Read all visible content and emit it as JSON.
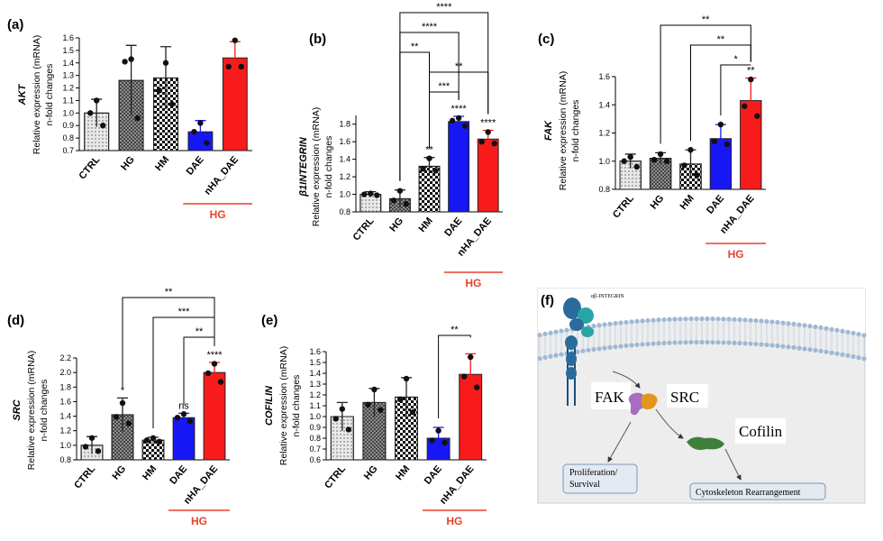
{
  "chart_data": [
    {
      "type": "bar",
      "panel": "(a)",
      "gene": "AKT",
      "ylabel": [
        "Relative expression (mRNA)",
        "n-fold changes"
      ],
      "categories": [
        "CTRL",
        "HG",
        "HM",
        "DAE",
        "nHA_DAE"
      ],
      "values": [
        1.0,
        1.26,
        1.28,
        0.85,
        1.44
      ],
      "errors": [
        0.11,
        0.28,
        0.25,
        0.09,
        0.13
      ],
      "points": [
        [
          1.1,
          1.0,
          0.9
        ],
        [
          1.43,
          1.41,
          0.96
        ],
        [
          1.4,
          1.18,
          1.07
        ],
        [
          0.92,
          0.85,
          0.76
        ],
        [
          1.58,
          1.37,
          1.37
        ]
      ],
      "colors": [
        "#e8e8e8",
        "#a0a0a0",
        "#ffffff",
        "#1717f5",
        "#f81b1b"
      ],
      "fills": [
        "dots",
        "crosshatch",
        "checker",
        "solid",
        "solid"
      ],
      "ylim": [
        0.7,
        1.6
      ],
      "yticks": [
        0.7,
        0.8,
        0.9,
        {
          "value": 1,
          "label": "1.0"
        },
        1.1,
        1.2,
        1.3,
        1.4,
        1.5,
        1.6
      ],
      "group": {
        "label": "HG",
        "from": "DAE",
        "to": "nHA_DAE",
        "color": "#e8412c"
      },
      "marks": [],
      "comparisons": []
    },
    {
      "type": "bar",
      "panel": "(b)",
      "gene": "β1INTEGRIN",
      "ylabel": [
        "Relative expression (mRNA)",
        "n-fold changes"
      ],
      "categories": [
        "CTRL",
        "HG",
        "HM",
        "DAE",
        "nHA_DAE"
      ],
      "values": [
        1.0,
        0.95,
        1.32,
        1.83,
        1.63
      ],
      "errors": [
        0.03,
        0.1,
        0.1,
        0.06,
        0.1
      ],
      "points": [
        [
          1.01,
          1.0,
          0.99
        ],
        [
          1.04,
          0.93,
          0.89
        ],
        [
          1.41,
          1.29,
          1.27
        ],
        [
          1.87,
          1.84,
          1.78
        ],
        [
          1.71,
          1.6,
          1.58
        ]
      ],
      "colors": [
        "#e8e8e8",
        "#a0a0a0",
        "#ffffff",
        "#1717f5",
        "#f81b1b"
      ],
      "fills": [
        "dots",
        "crosshatch",
        "checker",
        "solid",
        "solid"
      ],
      "ylim": [
        0.8,
        1.9
      ],
      "yticks": [
        0.8,
        {
          "value": 1,
          "label": "1.0"
        },
        1.2,
        1.4,
        1.6,
        1.8
      ],
      "group": {
        "label": "HG",
        "from": "DAE",
        "to": "nHA_DAE",
        "color": "#e8412c"
      },
      "marks": [
        {
          "category": "HM",
          "label": "**"
        },
        {
          "category": "DAE",
          "label": "****"
        },
        {
          "category": "nHA_DAE",
          "label": "****"
        }
      ],
      "comparisons": [
        {
          "from": "HM",
          "to": "DAE",
          "label": "***"
        },
        {
          "from": "HM",
          "to": "nHA_DAE",
          "label": "**"
        },
        {
          "from": "HG",
          "to": "HM",
          "label": "**"
        },
        {
          "from": "HG",
          "to": "DAE",
          "label": "****"
        },
        {
          "from": "HG",
          "to": "nHA_DAE",
          "label": "****"
        }
      ]
    },
    {
      "type": "bar",
      "panel": "(c)",
      "gene": "FAK",
      "ylabel": [
        "Relative expression (mRNA)",
        "n-fold changes"
      ],
      "categories": [
        "CTRL",
        "HG",
        "HM",
        "DAE",
        "nHA_DAE"
      ],
      "values": [
        1.0,
        1.02,
        0.98,
        1.16,
        1.43
      ],
      "errors": [
        0.05,
        0.04,
        0.1,
        0.1,
        0.16
      ],
      "points": [
        [
          1.03,
          1.0,
          0.96
        ],
        [
          1.05,
          1.01,
          1.0
        ],
        [
          1.08,
          0.97,
          0.9
        ],
        [
          1.26,
          1.14,
          1.12
        ],
        [
          1.58,
          1.39,
          1.32
        ]
      ],
      "colors": [
        "#e8e8e8",
        "#a0a0a0",
        "#ffffff",
        "#1717f5",
        "#f81b1b"
      ],
      "fills": [
        "dots",
        "crosshatch",
        "checker",
        "solid",
        "solid"
      ],
      "ylim": [
        0.8,
        1.6
      ],
      "yticks": [
        0.8,
        {
          "value": 1,
          "label": "1.0"
        },
        1.2,
        1.4,
        1.6
      ],
      "group": {
        "label": "HG",
        "from": "DAE",
        "to": "nHA_DAE",
        "color": "#e8412c"
      },
      "marks": [
        {
          "category": "nHA_DAE",
          "label": "**"
        }
      ],
      "comparisons": [
        {
          "from": "DAE",
          "to": "nHA_DAE",
          "label": "*"
        },
        {
          "from": "HM",
          "to": "nHA_DAE",
          "label": "**"
        },
        {
          "from": "HG",
          "to": "nHA_DAE",
          "label": "**"
        }
      ]
    },
    {
      "type": "bar",
      "panel": "(d)",
      "gene": "SRC",
      "ylabel": [
        "Relative expression (mRNA)",
        "n-fold changes"
      ],
      "categories": [
        "CTRL",
        "HG",
        "HM",
        "DAE",
        "nHA_DAE"
      ],
      "values": [
        1.0,
        1.42,
        1.07,
        1.38,
        2.0
      ],
      "errors": [
        0.12,
        0.23,
        0.04,
        0.06,
        0.14
      ],
      "points": [
        [
          1.1,
          0.98,
          0.92
        ],
        [
          1.58,
          1.39,
          1.3
        ],
        [
          1.1,
          1.07,
          1.05
        ],
        [
          1.43,
          1.38,
          1.33
        ],
        [
          2.12,
          1.99,
          1.87
        ]
      ],
      "colors": [
        "#e8e8e8",
        "#a0a0a0",
        "#ffffff",
        "#1717f5",
        "#f81b1b"
      ],
      "fills": [
        "dots",
        "crosshatch",
        "checker",
        "solid",
        "solid"
      ],
      "ylim": [
        0.8,
        2.2
      ],
      "yticks": [
        0.8,
        {
          "value": 1,
          "label": "1.0"
        },
        1.2,
        1.4,
        1.6,
        1.8,
        {
          "value": 2,
          "label": "2.0"
        },
        2.2
      ],
      "group": {
        "label": "HG",
        "from": "DAE",
        "to": "nHA_DAE",
        "color": "#e8412c"
      },
      "marks": [
        {
          "category": "HG",
          "label": "*"
        },
        {
          "category": "DAE",
          "label": "ns"
        },
        {
          "category": "nHA_DAE",
          "label": "****"
        }
      ],
      "comparisons": [
        {
          "from": "DAE",
          "to": "nHA_DAE",
          "label": "**"
        },
        {
          "from": "HM",
          "to": "nHA_DAE",
          "label": "***"
        },
        {
          "from": "HG",
          "to": "nHA_DAE",
          "label": "**"
        }
      ]
    },
    {
      "type": "bar",
      "panel": "(e)",
      "gene": "COFILIN",
      "ylabel": [
        "Relative expression (mRNA)",
        "n-fold changes"
      ],
      "categories": [
        "CTRL",
        "HG",
        "HM",
        "DAE",
        "nHA_DAE"
      ],
      "values": [
        1.0,
        1.13,
        1.18,
        0.8,
        1.39
      ],
      "errors": [
        0.13,
        0.13,
        0.18,
        0.1,
        0.19
      ],
      "points": [
        [
          1.07,
          0.98,
          0.88
        ],
        [
          1.25,
          1.11,
          1.06
        ],
        [
          1.35,
          1.16,
          1.04
        ],
        [
          0.87,
          0.78,
          0.76
        ],
        [
          1.55,
          1.37,
          1.27
        ]
      ],
      "colors": [
        "#e8e8e8",
        "#a0a0a0",
        "#ffffff",
        "#1717f5",
        "#f81b1b"
      ],
      "fills": [
        "dots",
        "crosshatch",
        "checker",
        "solid",
        "solid"
      ],
      "ylim": [
        0.6,
        1.6
      ],
      "yticks": [
        0.6,
        0.7,
        0.8,
        0.9,
        {
          "value": 1,
          "label": "1.0"
        },
        1.1,
        1.2,
        1.3,
        1.4,
        1.5,
        1.6
      ],
      "group": {
        "label": "HG",
        "from": "DAE",
        "to": "nHA_DAE",
        "color": "#e8412c"
      },
      "marks": [],
      "comparisons": [
        {
          "from": "DAE",
          "to": "nHA_DAE",
          "label": "**"
        }
      ]
    }
  ],
  "diagram": {
    "panel": "(f)",
    "receptor": "αβ-INTEGRIN",
    "nodes": [
      "FAK",
      "SRC",
      "Cofilin"
    ],
    "outcomes": [
      [
        "Proliferation/",
        "Survival"
      ],
      [
        "Cytoskeleton Rearrangement"
      ]
    ]
  }
}
